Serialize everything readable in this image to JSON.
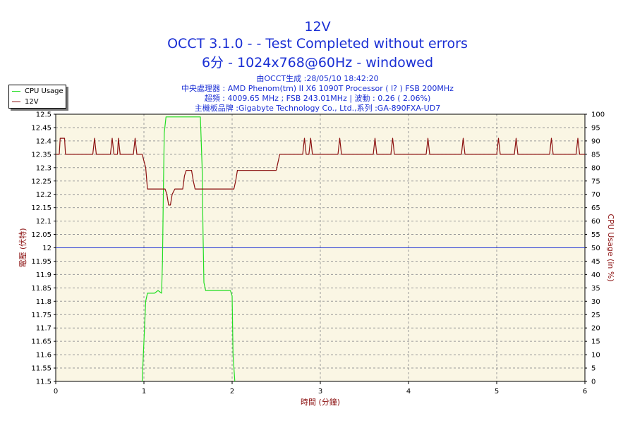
{
  "header": {
    "title": "12V",
    "subtitle1": "OCCT 3.1.0 -  - Test Completed without errors",
    "subtitle2": "6分 - 1024x768@60Hz - windowed",
    "info": [
      "由OCCT生成 :28/05/10 18:42:20",
      "中央處理器 : AMD Phenom(tm) II X6 1090T Processor (  l? ) FSB 200MHz",
      "超頻 : 4009.65 MHz ; FSB 243.01MHz | 波動 : 0.26 ( 2.06%)",
      "主機板品牌 :Gigabyte Technology Co., Ltd.,系列 :GA-890FXA-UD7"
    ]
  },
  "colors": {
    "plot_bg": "#faf6e4",
    "grid": "#9a9a9a",
    "voltage_line": "#8b1010",
    "cpu_line": "#22dd22",
    "ref_line": "#1a2fd4",
    "axis_label": "#8b1010",
    "title": "#1a2fd4"
  },
  "chart_data": {
    "type": "line",
    "title": "12V",
    "xlabel": "時間 (分鐘)",
    "ylabel": "電壓 (伏特)",
    "y2label": "CPU Usage (in %)",
    "xlim": [
      0,
      6
    ],
    "ylim": [
      11.5,
      12.5
    ],
    "y2lim": [
      0,
      100
    ],
    "x_ticks": [
      "0",
      "1",
      "2",
      "3",
      "4",
      "5",
      "6"
    ],
    "y_ticks": [
      "12.5",
      "12.45",
      "12.4",
      "12.35",
      "12.3",
      "12.25",
      "12.2",
      "12.15",
      "12.1",
      "12.05",
      "12",
      "11.95",
      "11.9",
      "11.85",
      "11.8",
      "11.75",
      "11.7",
      "11.65",
      "11.6",
      "11.55",
      "11.5"
    ],
    "y2_ticks": [
      "100",
      "95",
      "90",
      "85",
      "80",
      "75",
      "70",
      "65",
      "60",
      "55",
      "50",
      "45",
      "40",
      "35",
      "30",
      "25",
      "20",
      "15",
      "10",
      "5",
      "0"
    ],
    "grid": true,
    "legend_position": "top-left",
    "reference_line": 12.0,
    "series": [
      {
        "name": "CPU Usage",
        "axis": "right",
        "x": [
          0.98,
          1.0,
          1.02,
          1.04,
          1.12,
          1.16,
          1.2,
          1.21,
          1.22,
          1.23,
          1.25,
          1.3,
          1.4,
          1.5,
          1.6,
          1.64,
          1.66,
          1.67,
          1.68,
          1.7,
          1.72,
          1.8,
          1.9,
          1.98,
          2.0,
          2.01,
          2.03
        ],
        "y": [
          0,
          15,
          30,
          33,
          33,
          34,
          33,
          45,
          70,
          93,
          99,
          99,
          99,
          99,
          99,
          99,
          80,
          55,
          37,
          34,
          34,
          34,
          34,
          34,
          32,
          10,
          0
        ]
      },
      {
        "name": "12V",
        "axis": "left",
        "x": [
          0,
          0.04,
          0.05,
          0.1,
          0.11,
          0.2,
          0.42,
          0.44,
          0.46,
          0.62,
          0.64,
          0.66,
          0.7,
          0.71,
          0.73,
          0.88,
          0.9,
          0.92,
          0.98,
          1.02,
          1.04,
          1.22,
          1.24,
          1.26,
          1.28,
          1.3,
          1.32,
          1.35,
          1.37,
          1.4,
          1.44,
          1.46,
          1.48,
          1.5,
          1.54,
          1.56,
          1.58,
          1.6,
          1.62,
          2.02,
          2.04,
          2.06,
          2.5,
          2.52,
          2.54,
          2.8,
          2.82,
          2.84,
          2.87,
          2.89,
          2.91,
          3.2,
          3.22,
          3.24,
          3.6,
          3.62,
          3.64,
          3.8,
          3.82,
          3.84,
          4.2,
          4.22,
          4.24,
          4.6,
          4.62,
          4.64,
          5.0,
          5.02,
          5.04,
          5.2,
          5.22,
          5.24,
          5.6,
          5.62,
          5.64,
          5.9,
          5.92,
          5.94,
          6.0
        ],
        "y": [
          12.35,
          12.35,
          12.41,
          12.41,
          12.35,
          12.35,
          12.35,
          12.41,
          12.35,
          12.35,
          12.41,
          12.35,
          12.35,
          12.41,
          12.35,
          12.35,
          12.41,
          12.35,
          12.35,
          12.3,
          12.22,
          12.22,
          12.22,
          12.2,
          12.16,
          12.16,
          12.2,
          12.22,
          12.22,
          12.22,
          12.22,
          12.27,
          12.29,
          12.29,
          12.29,
          12.25,
          12.22,
          12.22,
          12.22,
          12.22,
          12.25,
          12.29,
          12.29,
          12.32,
          12.35,
          12.35,
          12.41,
          12.35,
          12.35,
          12.41,
          12.35,
          12.35,
          12.41,
          12.35,
          12.35,
          12.41,
          12.35,
          12.35,
          12.41,
          12.35,
          12.35,
          12.41,
          12.35,
          12.35,
          12.41,
          12.35,
          12.35,
          12.41,
          12.35,
          12.35,
          12.41,
          12.35,
          12.35,
          12.41,
          12.35,
          12.35,
          12.41,
          12.35,
          12.35
        ]
      }
    ]
  }
}
